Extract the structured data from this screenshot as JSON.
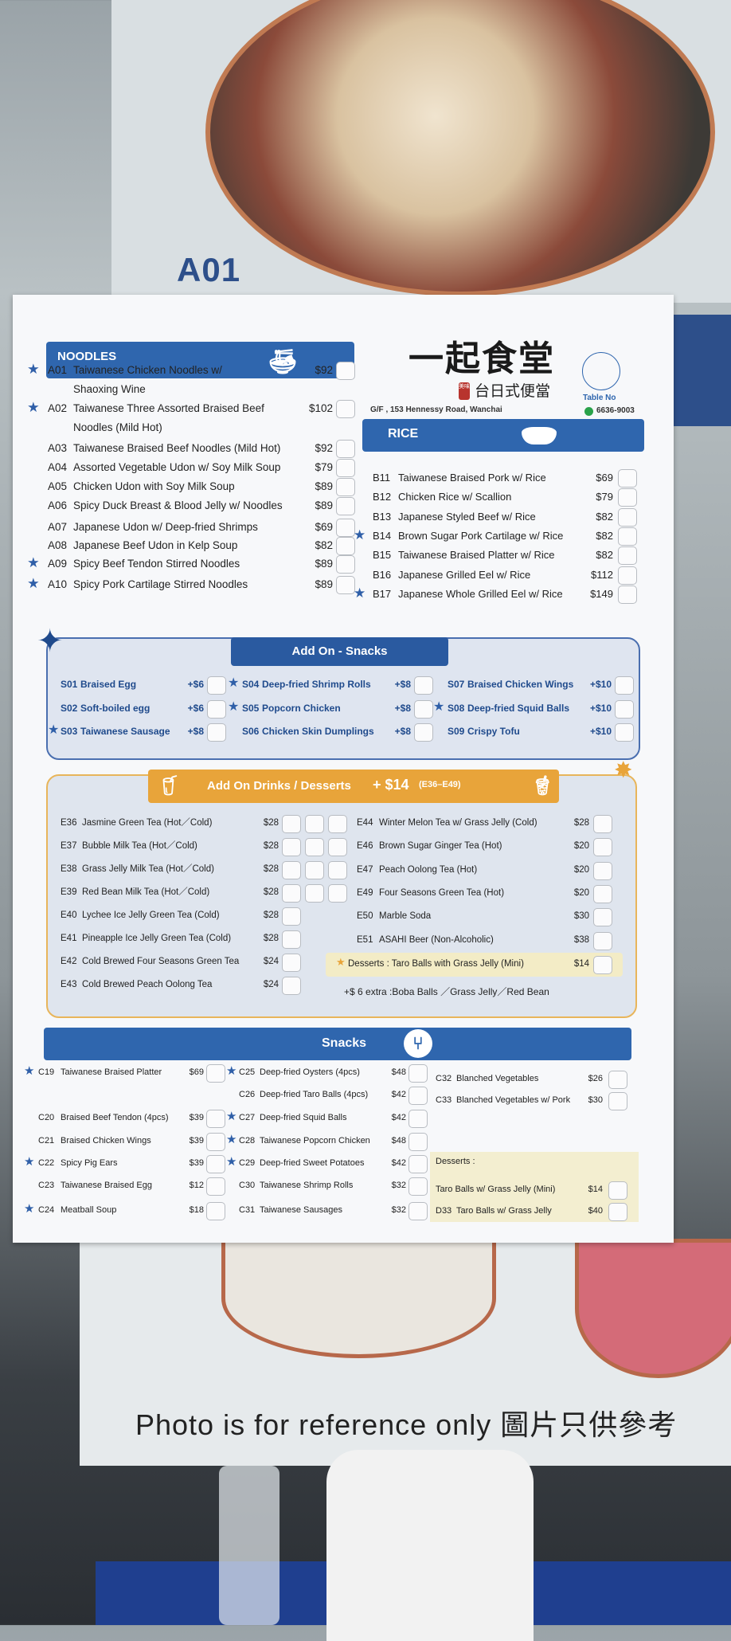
{
  "background": {
    "photo_label": "A01",
    "reference_note": "Photo is for reference only 圖片只供參考"
  },
  "restaurant": {
    "name": "一起食堂",
    "subtitle": "台日式便當",
    "seal": "美味",
    "address": "G/F , 153 Hennessy Road, Wanchai",
    "phone": "6636-9003",
    "table_no_label": "Table No"
  },
  "colors": {
    "primary_blue": "#2f66ae",
    "drinks_orange": "#e8a43a",
    "text": "#222222"
  },
  "noodles": {
    "title": "NOODLES",
    "icon": "noodle-bowl-icon",
    "items": [
      {
        "code": "A01",
        "name": "Taiwanese Chicken Noodles w/",
        "name2": "Shaoxing Wine",
        "price": "$92",
        "star": true
      },
      {
        "code": "A02",
        "name": "Taiwanese Three Assorted Braised Beef",
        "name2": "Noodles (Mild Hot)",
        "price": "$102",
        "star": true
      },
      {
        "code": "A03",
        "name": "Taiwanese Braised Beef Noodles (Mild Hot)",
        "price": "$92",
        "star": false
      },
      {
        "code": "A04",
        "name": "Assorted Vegetable Udon w/ Soy Milk Soup",
        "price": "$79",
        "star": false
      },
      {
        "code": "A05",
        "name": "Chicken Udon with Soy Milk Soup",
        "price": "$89",
        "star": false
      },
      {
        "code": "A06",
        "name": "Spicy Duck Breast & Blood Jelly w/ Noodles",
        "price": "$89",
        "star": false
      },
      {
        "code": "A07",
        "name": "Japanese Udon w/ Deep-fried Shrimps",
        "price": "$69",
        "star": false
      },
      {
        "code": "A08",
        "name": "Japanese Beef Udon in Kelp Soup",
        "price": "$82",
        "star": false
      },
      {
        "code": "A09",
        "name": "Spicy Beef Tendon Stirred Noodles",
        "price": "$89",
        "star": true
      },
      {
        "code": "A10",
        "name": "Spicy Pork Cartilage Stirred Noodles",
        "price": "$89",
        "star": true
      }
    ]
  },
  "rice": {
    "title": "RICE",
    "icon": "rice-bowl-icon",
    "items": [
      {
        "code": "B11",
        "name": "Taiwanese Braised Pork w/ Rice",
        "price": "$69",
        "star": false
      },
      {
        "code": "B12",
        "name": "Chicken Rice w/ Scallion",
        "price": "$79",
        "star": false
      },
      {
        "code": "B13",
        "name": "Japanese Styled Beef w/ Rice",
        "price": "$82",
        "star": false
      },
      {
        "code": "B14",
        "name": "Brown Sugar Pork Cartilage w/ Rice",
        "price": "$82",
        "star": true
      },
      {
        "code": "B15",
        "name": "Taiwanese Braised Platter w/ Rice",
        "price": "$82",
        "star": false
      },
      {
        "code": "B16",
        "name": "Japanese Grilled Eel w/ Rice",
        "price": "$112",
        "star": false
      },
      {
        "code": "B17",
        "name": "Japanese Whole Grilled Eel w/ Rice",
        "price": "$149",
        "star": true
      }
    ]
  },
  "addon_snacks": {
    "title": "Add On - Snacks",
    "items": [
      {
        "code": "S01",
        "name": "Braised Egg",
        "price": "+$6",
        "star": false
      },
      {
        "code": "S02",
        "name": "Soft-boiled egg",
        "price": "+$6",
        "star": false
      },
      {
        "code": "S03",
        "name": "Taiwanese Sausage",
        "price": "+$8",
        "star": true
      },
      {
        "code": "S04",
        "name": "Deep-fried Shrimp Rolls",
        "price": "+$8",
        "star": true
      },
      {
        "code": "S05",
        "name": "Popcorn Chicken",
        "price": "+$8",
        "star": true
      },
      {
        "code": "S06",
        "name": "Chicken Skin Dumplings",
        "price": "+$8",
        "star": false
      },
      {
        "code": "S07",
        "name": "Braised Chicken Wings",
        "price": "+$10",
        "star": false
      },
      {
        "code": "S08",
        "name": "Deep-fried Squid Balls",
        "price": "+$10",
        "star": true
      },
      {
        "code": "S09",
        "name": "Crispy Tofu",
        "price": "+$10",
        "star": false
      }
    ]
  },
  "drinks": {
    "title": "Add On Drinks / Desserts",
    "title_price": "+ $14",
    "title_range": "(E36–E49)",
    "left": [
      {
        "code": "E36",
        "name": "Jasmine Green Tea (Hot／Cold)",
        "price": "$28",
        "boxes": 3
      },
      {
        "code": "E37",
        "name": "Bubble Milk Tea (Hot／Cold)",
        "price": "$28",
        "boxes": 3
      },
      {
        "code": "E38",
        "name": "Grass Jelly Milk Tea  (Hot／Cold)",
        "price": "$28",
        "boxes": 3
      },
      {
        "code": "E39",
        "name": "Red Bean Milk Tea (Hot／Cold)",
        "price": "$28",
        "boxes": 3
      },
      {
        "code": "E40",
        "name": "Lychee Ice Jelly Green Tea (Cold)",
        "price": "$28",
        "boxes": 1
      },
      {
        "code": "E41",
        "name": "Pineapple Ice Jelly Green Tea (Cold)",
        "price": "$28",
        "boxes": 1
      },
      {
        "code": "E42",
        "name": "Cold Brewed Four Seasons Green Tea",
        "price": "$24",
        "boxes": 1
      },
      {
        "code": "E43",
        "name": "Cold Brewed Peach Oolong Tea",
        "price": "$24",
        "boxes": 1
      }
    ],
    "right": [
      {
        "code": "E44",
        "name": "Winter Melon Tea w/ Grass Jelly (Cold)",
        "price": "$28"
      },
      {
        "code": "E46",
        "name": "Brown Sugar Ginger Tea (Hot)",
        "price": "$20"
      },
      {
        "code": "E47",
        "name": "Peach Oolong Tea (Hot)",
        "price": "$20"
      },
      {
        "code": "E49",
        "name": "Four Seasons Green Tea (Hot)",
        "price": "$20"
      },
      {
        "code": "E50",
        "name": "Marble Soda",
        "price": "$30"
      },
      {
        "code": "E51",
        "name": "ASAHI Beer (Non-Alcoholic)",
        "price": "$38"
      }
    ],
    "dessert": {
      "label": "Desserts : Taro Balls with Grass Jelly (Mini)",
      "price": "$14"
    },
    "extra": "+$ 6 extra :Boba Balls ／Grass Jelly／Red Bean"
  },
  "snacks": {
    "title": "Snacks",
    "icon": "fork-icon",
    "col1": [
      {
        "code": "C19",
        "name": "Taiwanese Braised Platter",
        "price": "$69",
        "star": true
      },
      {
        "code": "C20",
        "name": "Braised Beef Tendon (4pcs)",
        "price": "$39",
        "star": false
      },
      {
        "code": "C21",
        "name": "Braised Chicken Wings",
        "price": "$39",
        "star": false
      },
      {
        "code": "C22",
        "name": "Spicy Pig Ears",
        "price": "$39",
        "star": true
      },
      {
        "code": "C23",
        "name": "Taiwanese Braised Egg",
        "price": "$12",
        "star": false
      },
      {
        "code": "C24",
        "name": "Meatball Soup",
        "price": "$18",
        "star": true
      }
    ],
    "col2": [
      {
        "code": "C25",
        "name": "Deep-fried Oysters (4pcs)",
        "price": "$48",
        "star": true
      },
      {
        "code": "C26",
        "name": "Deep-fried Taro Balls (4pcs)",
        "price": "$42",
        "star": false
      },
      {
        "code": "C27",
        "name": "Deep-fried Squid Balls",
        "price": "$42",
        "star": true
      },
      {
        "code": "C28",
        "name": "Taiwanese Popcorn Chicken",
        "price": "$48",
        "star": true
      },
      {
        "code": "C29",
        "name": "Deep-fried Sweet Potatoes",
        "price": "$42",
        "star": true
      },
      {
        "code": "C30",
        "name": "Taiwanese Shrimp Rolls",
        "price": "$32",
        "star": false
      },
      {
        "code": "C31",
        "name": "Taiwanese Sausages",
        "price": "$32",
        "star": false
      }
    ],
    "col3": [
      {
        "code": "C32",
        "name": "Blanched Vegetables",
        "price": "$26",
        "star": false
      },
      {
        "code": "C33",
        "name": "Blanched Vegetables w/ Pork",
        "price": "$30",
        "star": false
      }
    ],
    "desserts_label": "Desserts :",
    "desserts": [
      {
        "code": "",
        "name": "Taro Balls w/ Grass Jelly (Mini)",
        "price": "$14",
        "star": false
      },
      {
        "code": "D33",
        "name": "Taro Balls w/ Grass Jelly",
        "price": "$40",
        "star": false
      }
    ]
  }
}
